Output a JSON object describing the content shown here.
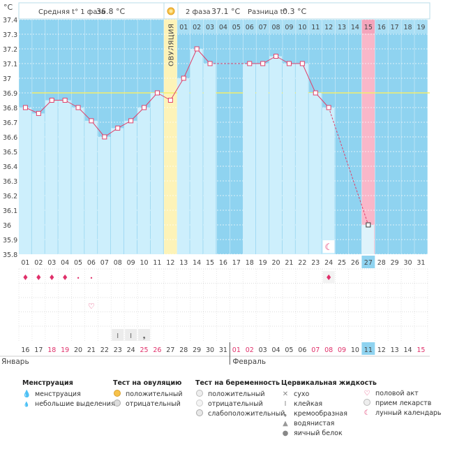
{
  "unit_label": "°C",
  "header": {
    "phase1_label": "Средняя t° 1 фаза",
    "phase1_value": "36.8 °C",
    "phase2_label": "2 фаза",
    "phase2_value": "37.1 °C",
    "diff_label": "Разница t°",
    "diff_value": "0.3 °C",
    "ovulation_label": "ОВУЛЯЦИЯ"
  },
  "chart_data": {
    "type": "line",
    "title": "",
    "xlabel": "",
    "ylabel": "°C",
    "ylim": [
      35.8,
      37.4
    ],
    "y_ticks": [
      "35.8",
      "35.9",
      "36",
      "36.1",
      "36.2",
      "36.3",
      "36.4",
      "36.5",
      "36.6",
      "36.7",
      "36.8",
      "36.9",
      "37",
      "37.1",
      "37.2",
      "37.3",
      "37.4"
    ],
    "cycle_days": [
      "01",
      "02",
      "03",
      "04",
      "05",
      "06",
      "07",
      "08",
      "09",
      "10",
      "11",
      "12",
      "13",
      "14",
      "15",
      "16",
      "17",
      "18",
      "19",
      "20",
      "21",
      "22",
      "23",
      "24",
      "25",
      "26",
      "27",
      "28",
      "29",
      "30",
      "31"
    ],
    "phase2_days": [
      "01",
      "02",
      "03",
      "04",
      "05",
      "06",
      "07",
      "08",
      "09",
      "10",
      "11",
      "12",
      "13",
      "14",
      "15",
      "16",
      "17",
      "18",
      "19"
    ],
    "calendar_dates": [
      "16",
      "17",
      "18",
      "19",
      "20",
      "21",
      "22",
      "23",
      "24",
      "25",
      "26",
      "27",
      "28",
      "29",
      "30",
      "31",
      "01",
      "02",
      "03",
      "04",
      "05",
      "06",
      "07",
      "08",
      "09",
      "10",
      "11",
      "12",
      "13",
      "14",
      "15"
    ],
    "red_dates_idx": [
      2,
      3,
      9,
      10,
      16,
      17,
      22,
      23,
      24,
      30
    ],
    "highlight_day_idx": 26,
    "ovulation_day_idx": 11,
    "coverline": 36.9,
    "series": [
      {
        "name": "Базальная температура",
        "values": [
          36.8,
          36.76,
          36.85,
          36.85,
          36.8,
          36.71,
          36.6,
          36.66,
          36.71,
          36.8,
          36.9,
          36.85,
          37.0,
          37.2,
          37.1,
          null,
          null,
          37.1,
          37.1,
          37.15,
          37.1,
          37.1,
          36.9,
          36.8,
          null,
          null,
          36.0,
          null,
          null,
          null,
          null
        ]
      }
    ],
    "dotted_segments": [
      [
        14,
        17
      ],
      [
        23,
        26
      ]
    ],
    "menstruation_heavy_idx": [
      0,
      1,
      2,
      3
    ],
    "menstruation_light_idx": [
      4,
      5
    ],
    "menstruation_idx_late": [
      23
    ],
    "intercourse_idx": [
      5
    ],
    "moon_idx": [
      23
    ],
    "cervical_idx": [
      {
        "i": 7,
        "type": "sticky"
      },
      {
        "i": 8,
        "type": "sticky"
      },
      {
        "i": 9,
        "type": "creamy"
      }
    ],
    "month_labels": [
      {
        "label": "Январь",
        "idx": 0
      },
      {
        "label": "Февраль",
        "idx": 16
      }
    ]
  },
  "legend": {
    "groups": [
      {
        "title": "Менструация",
        "items": [
          {
            "icon": "drops",
            "label": "менструация"
          },
          {
            "icon": "drop",
            "label": "небольшие выделения"
          }
        ]
      },
      {
        "title": "Тест на овуляцию",
        "items": [
          {
            "icon": "pos",
            "label": "положительный"
          },
          {
            "icon": "neg",
            "label": "отрицательный"
          }
        ]
      },
      {
        "title": "Тест на беременность",
        "items": [
          {
            "icon": "pos2",
            "label": "положительный"
          },
          {
            "icon": "neg2",
            "label": "отрицательный"
          },
          {
            "icon": "weak",
            "label": "слабоположительный"
          }
        ]
      },
      {
        "title": "Цервикальная жидкость",
        "items": [
          {
            "icon": "x",
            "label": "сухо"
          },
          {
            "icon": "I",
            "label": "клейкая"
          },
          {
            "icon": "cream",
            "label": "кремообразная"
          },
          {
            "icon": "water",
            "label": "водянистая"
          },
          {
            "icon": "egg",
            "label": "яичный белок"
          }
        ]
      },
      {
        "title": "",
        "items": [
          {
            "icon": "heart",
            "label": "половой акт"
          },
          {
            "icon": "pill",
            "label": "прием лекарств"
          },
          {
            "icon": "moon",
            "label": "лунный календарь"
          }
        ]
      }
    ]
  },
  "colors": {
    "bg_blue": "#8fd3f0",
    "bar": "#cdeffc",
    "line": "#e0406a",
    "coverline": "#f4ee6a",
    "ovulation": "#fdf3b8",
    "highlight": "#f9b7c9",
    "accent_red": "#e0306a"
  }
}
